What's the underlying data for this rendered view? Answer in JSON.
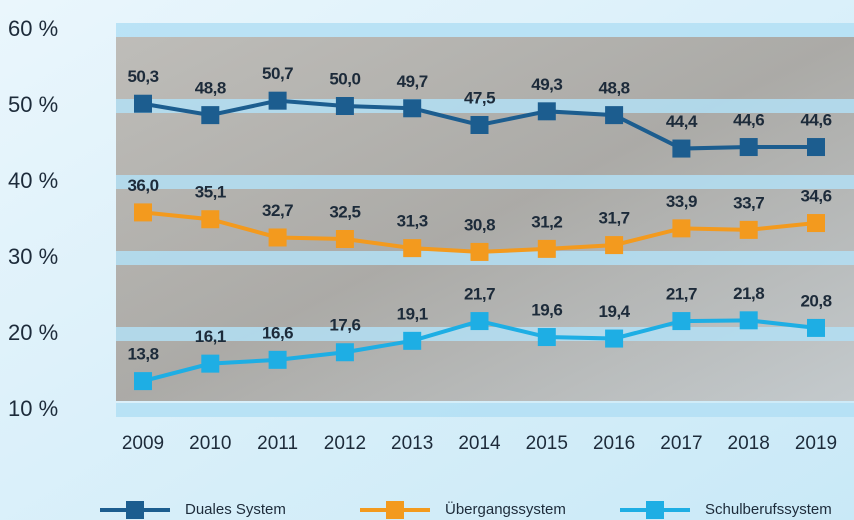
{
  "chart_data": {
    "type": "line",
    "categories": [
      "2009",
      "2010",
      "2011",
      "2012",
      "2013",
      "2014",
      "2015",
      "2016",
      "2017",
      "2018",
      "2019"
    ],
    "series": [
      {
        "name": "Duales System",
        "color": "#1c5d8f",
        "values": [
          50.3,
          48.8,
          50.7,
          50.0,
          49.7,
          47.5,
          49.3,
          48.8,
          44.4,
          44.6,
          44.6
        ],
        "value_labels": [
          "50,3",
          "48,8",
          "50,7",
          "50,0",
          "49,7",
          "47,5",
          "49,3",
          "48,8",
          "44,4",
          "44,6",
          "44,6"
        ]
      },
      {
        "name": "Übergangssystem",
        "color": "#f39a1e",
        "values": [
          36.0,
          35.1,
          32.7,
          32.5,
          31.3,
          30.8,
          31.2,
          31.7,
          33.9,
          33.7,
          34.6
        ],
        "value_labels": [
          "36,0",
          "35,1",
          "32,7",
          "32,5",
          "31,3",
          "30,8",
          "31,2",
          "31,7",
          "33,9",
          "33,7",
          "34,6"
        ]
      },
      {
        "name": "Schulberufssystem",
        "color": "#1eaee4",
        "values": [
          13.8,
          16.1,
          16.6,
          17.6,
          19.1,
          21.7,
          19.6,
          19.4,
          21.7,
          21.8,
          20.8
        ],
        "value_labels": [
          "13,8",
          "16,1",
          "16,6",
          "17,6",
          "19,1",
          "21,7",
          "19,6",
          "19,4",
          "21,7",
          "21,8",
          "20,8"
        ]
      }
    ],
    "ylim": [
      10,
      60
    ],
    "yticks": [
      {
        "value": 10,
        "label": "10 %"
      },
      {
        "value": 20,
        "label": "20 %"
      },
      {
        "value": 30,
        "label": "30 %"
      },
      {
        "value": 40,
        "label": "40 %"
      },
      {
        "value": 50,
        "label": "50 %"
      },
      {
        "value": 60,
        "label": "60 %"
      }
    ],
    "grid": true
  }
}
